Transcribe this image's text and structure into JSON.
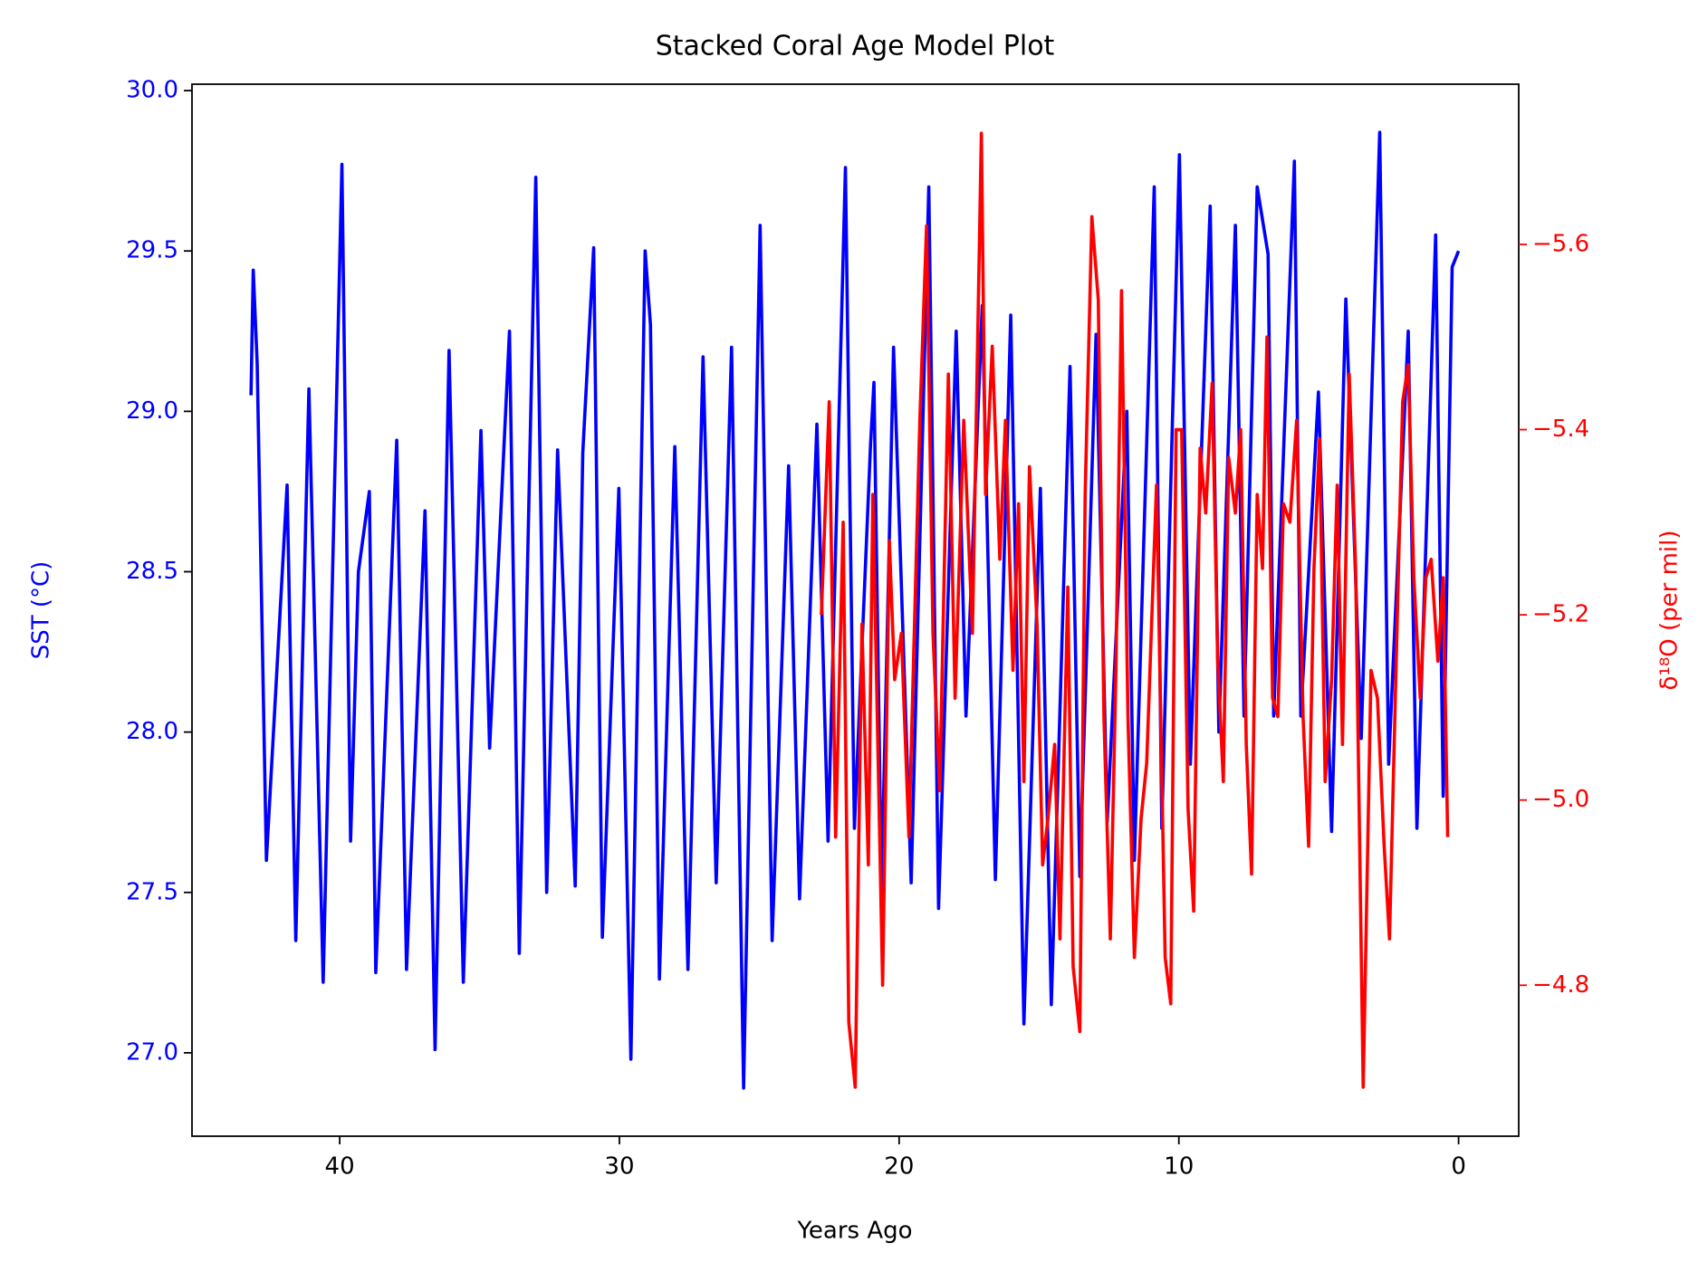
{
  "chart_data": {
    "type": "line",
    "title": "Stacked Coral Age Model Plot",
    "x_label": "Years Ago",
    "y_label": "SST (°C)",
    "y2_label": "δ¹⁸O (per mil)",
    "y_color": "#0000ff",
    "y2_color": "#ff0000",
    "grid": false,
    "xlim": [
      45.28,
      -2.15
    ],
    "xticks": [
      40,
      30,
      20,
      10,
      0
    ],
    "ylim": [
      26.74,
      30.02
    ],
    "yticks": [
      {
        "value": 27,
        "label": "27.0"
      },
      27.5,
      {
        "value": 28,
        "label": "28.0"
      },
      28.5,
      {
        "value": 29,
        "label": "29.0"
      },
      29.5,
      {
        "value": 30,
        "label": "30.0"
      }
    ],
    "y2lim": [
      -4.637,
      -5.773
    ],
    "y2ticks": [
      {
        "value": -4.8,
        "label": "−4.8"
      },
      {
        "value": -5.0,
        "label": "−5.0"
      },
      {
        "value": -5.2,
        "label": "−5.2"
      },
      {
        "value": -5.4,
        "label": "−5.4"
      },
      {
        "value": -5.6,
        "label": "−5.6"
      }
    ],
    "series": [
      {
        "color": "#0000ff",
        "axis": "y",
        "x": [
          43.17,
          43.09,
          42.95,
          42.62,
          41.88,
          41.57,
          41.1,
          40.59,
          39.92,
          39.61,
          39.33,
          38.94,
          38.71,
          37.96,
          37.61,
          36.95,
          36.59,
          36.09,
          35.58,
          34.95,
          34.64,
          33.93,
          33.58,
          32.99,
          32.6,
          32.21,
          31.58,
          31.31,
          30.92,
          30.61,
          30.02,
          29.59,
          29.08,
          28.89,
          28.57,
          28.02,
          27.55,
          27.01,
          26.54,
          25.99,
          25.56,
          24.97,
          24.54,
          23.95,
          23.56,
          22.94,
          22.54,
          21.92,
          21.6,
          21.02,
          20.9,
          20.63,
          20.2,
          19.57,
          18.94,
          18.59,
          17.96,
          17.61,
          17.03,
          16.56,
          16.01,
          15.54,
          14.95,
          14.56,
          13.89,
          13.54,
          12.96,
          12.56,
          11.86,
          11.59,
          10.88,
          10.61,
          9.98,
          9.59,
          8.88,
          8.57,
          7.98,
          7.67,
          7.2,
          6.81,
          6.61,
          5.87,
          5.64,
          5.01,
          4.54,
          4.03,
          3.48,
          2.82,
          2.5,
          1.8,
          1.49,
          0.82,
          0.55,
          0.23,
          0.0
        ],
        "values": [
          29.05,
          29.44,
          29.15,
          27.6,
          28.77,
          27.35,
          29.07,
          27.22,
          29.77,
          27.66,
          28.5,
          28.75,
          27.25,
          28.91,
          27.26,
          28.69,
          27.01,
          29.19,
          27.22,
          28.94,
          27.95,
          29.25,
          27.31,
          29.73,
          27.5,
          28.88,
          27.52,
          28.87,
          29.51,
          27.36,
          28.76,
          26.98,
          29.5,
          29.27,
          27.23,
          28.89,
          27.26,
          29.17,
          27.53,
          29.2,
          26.89,
          29.58,
          27.35,
          28.83,
          27.48,
          28.96,
          27.66,
          29.76,
          27.7,
          28.9,
          29.09,
          27.5,
          29.2,
          27.53,
          29.7,
          27.45,
          29.25,
          28.05,
          29.33,
          27.54,
          29.3,
          27.09,
          28.76,
          27.15,
          29.14,
          27.55,
          29.24,
          27.72,
          29.0,
          27.6,
          29.7,
          27.7,
          29.8,
          27.9,
          29.64,
          28.0,
          29.58,
          28.05,
          29.7,
          29.49,
          28.05,
          29.78,
          28.05,
          29.06,
          27.69,
          29.35,
          27.98,
          29.87,
          27.9,
          29.25,
          27.7,
          29.55,
          27.8,
          29.45,
          29.5
        ]
      },
      {
        "color": "#ff0000",
        "axis": "y2",
        "x": [
          22.78,
          22.5,
          22.27,
          22.0,
          21.8,
          21.57,
          21.33,
          21.1,
          20.94,
          20.59,
          20.35,
          20.16,
          19.92,
          19.65,
          19.26,
          19.02,
          18.79,
          18.55,
          18.24,
          18.0,
          17.69,
          17.38,
          17.06,
          16.91,
          16.67,
          16.4,
          16.2,
          15.93,
          15.73,
          15.54,
          15.34,
          15.07,
          14.87,
          14.68,
          14.44,
          14.25,
          13.97,
          13.78,
          13.54,
          13.35,
          13.11,
          12.88,
          12.68,
          12.45,
          12.25,
          12.05,
          11.82,
          11.59,
          11.35,
          11.15,
          10.8,
          10.49,
          10.29,
          10.1,
          9.9,
          9.67,
          9.47,
          9.24,
          9.04,
          8.81,
          8.61,
          8.41,
          8.22,
          7.98,
          7.79,
          7.59,
          7.4,
          7.2,
          7.01,
          6.85,
          6.65,
          6.46,
          6.26,
          6.03,
          5.79,
          5.56,
          5.36,
          5.17,
          4.97,
          4.77,
          4.54,
          4.34,
          4.15,
          3.91,
          3.68,
          3.41,
          3.13,
          2.9,
          2.66,
          2.47,
          2.23,
          2.0,
          1.8,
          1.6,
          1.37,
          1.17,
          0.98,
          0.74,
          0.55,
          0.39
        ],
        "values": [
          -5.2,
          -5.43,
          -4.96,
          -5.3,
          -4.76,
          -4.69,
          -5.19,
          -4.93,
          -5.33,
          -4.8,
          -5.28,
          -5.13,
          -5.18,
          -4.96,
          -5.41,
          -5.62,
          -5.18,
          -5.01,
          -5.46,
          -5.11,
          -5.41,
          -5.18,
          -5.72,
          -5.33,
          -5.49,
          -5.26,
          -5.41,
          -5.14,
          -5.32,
          -5.02,
          -5.36,
          -5.19,
          -4.93,
          -4.98,
          -5.06,
          -4.85,
          -5.23,
          -4.82,
          -4.75,
          -5.33,
          -5.63,
          -5.54,
          -5.09,
          -4.85,
          -5.14,
          -5.55,
          -5.09,
          -4.83,
          -4.98,
          -5.04,
          -5.34,
          -4.83,
          -4.78,
          -5.4,
          -5.4,
          -4.99,
          -4.88,
          -5.38,
          -5.31,
          -5.45,
          -5.15,
          -5.02,
          -5.37,
          -5.31,
          -5.4,
          -5.06,
          -4.92,
          -5.33,
          -5.25,
          -5.5,
          -5.11,
          -5.09,
          -5.32,
          -5.3,
          -5.41,
          -5.09,
          -4.95,
          -5.25,
          -5.39,
          -5.02,
          -5.13,
          -5.34,
          -5.06,
          -5.46,
          -5.25,
          -4.69,
          -5.14,
          -5.11,
          -4.95,
          -4.85,
          -5.15,
          -5.43,
          -5.47,
          -5.24,
          -5.11,
          -5.24,
          -5.26,
          -5.15,
          -5.24,
          -4.96
        ]
      }
    ]
  }
}
